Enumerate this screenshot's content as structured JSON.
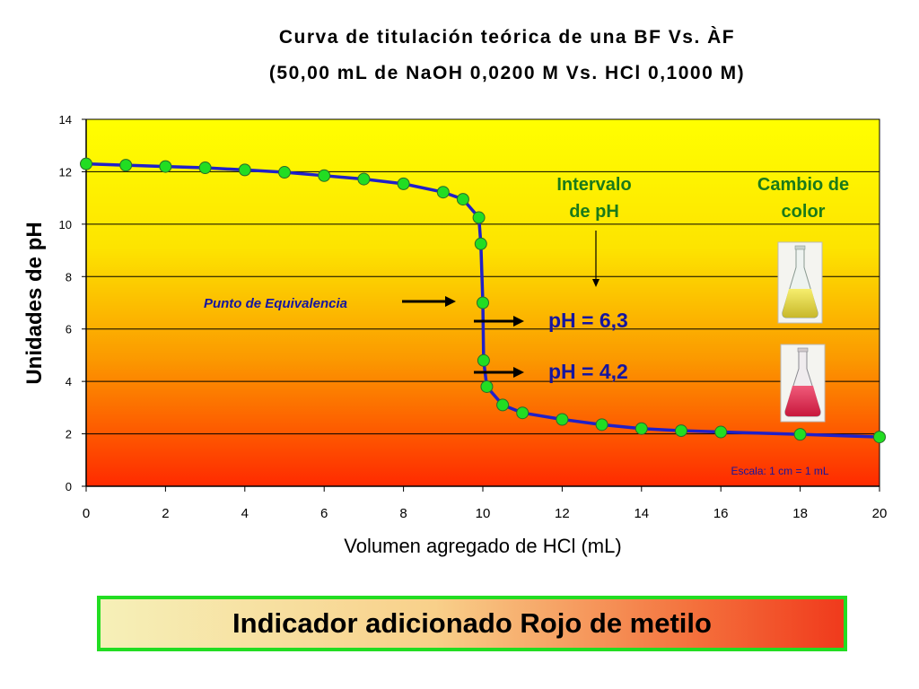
{
  "header": {
    "title_line1": "Curva de titulación teórica de una BF Vs. ÀF",
    "title_line2": "(50,00 mL de NaOH 0,0200 M Vs. HCl 0,1000 M)"
  },
  "chart_data": {
    "type": "line",
    "xlabel": "Volumen agregado de HCl (mL)",
    "ylabel": "Unidades de pH",
    "xlim": [
      0,
      20
    ],
    "ylim": [
      0,
      14
    ],
    "xticks": [
      "0",
      "2",
      "4",
      "6",
      "8",
      "10",
      "12",
      "14",
      "16",
      "18",
      "20"
    ],
    "yticks": [
      "0",
      "2",
      "4",
      "6",
      "8",
      "10",
      "12",
      "14"
    ],
    "grid": "horizontal",
    "background": "vertical gradient yellow to red",
    "series": [
      {
        "color": "#2020c8",
        "marker_color": "#22dd22",
        "x": [
          0,
          1,
          2,
          3,
          4,
          5,
          6,
          7,
          8,
          9,
          9.5,
          9.9,
          9.95,
          10,
          10.02,
          10.1,
          10.5,
          11,
          12,
          13,
          14,
          15,
          16,
          18,
          20
        ],
        "y": [
          12.3,
          12.25,
          12.2,
          12.15,
          12.07,
          11.98,
          11.85,
          11.72,
          11.54,
          11.22,
          10.95,
          10.25,
          9.25,
          7.0,
          4.8,
          3.8,
          3.1,
          2.8,
          2.55,
          2.35,
          2.2,
          2.12,
          2.07,
          1.98,
          1.88
        ]
      }
    ],
    "annotations": {
      "equivalence": "Punto de Equivalencia",
      "interval_title": "Intervalo de pH",
      "interval_line1": "Intervalo",
      "interval_line2": "de pH",
      "ph_high": "pH = 6,3",
      "ph_low": "pH = 4,2",
      "color_change_line1": "Cambio de",
      "color_change_line2": "color",
      "scale": "Escala: 1 cm = 1 mL"
    }
  },
  "footer": {
    "indicator_label": "Indicador adicionado Rojo de metilo"
  },
  "colors": {
    "curve": "#2020c8",
    "marker": "#22dd22",
    "annotation_blue": "#1515a0",
    "annotation_green": "#1a7a1a",
    "frame_green": "#22dd22"
  }
}
